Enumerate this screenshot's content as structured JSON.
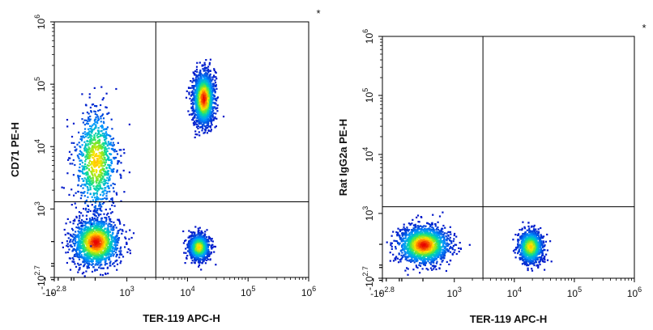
{
  "chart_data": [
    {
      "type": "scatter",
      "subtype": "flow-cytometry-density-plot",
      "xlabel": "TER-119 APC-H",
      "ylabel": "CD71 PE-H",
      "corner_mark": "*",
      "scale": "biexponential",
      "x_ticks": [
        {
          "base": "-10",
          "exp": "2.8",
          "value": -631
        },
        {
          "base": "10",
          "exp": "3",
          "value": 1000
        },
        {
          "base": "10",
          "exp": "4",
          "value": 10000
        },
        {
          "base": "10",
          "exp": "5",
          "value": 100000
        },
        {
          "base": "10",
          "exp": "6",
          "value": 1000000
        }
      ],
      "y_ticks": [
        {
          "base": "-10",
          "exp": "2.7",
          "value": -501
        },
        {
          "base": "10",
          "exp": "3",
          "value": 1000
        },
        {
          "base": "10",
          "exp": "4",
          "value": 10000
        },
        {
          "base": "10",
          "exp": "5",
          "value": 100000
        },
        {
          "base": "10",
          "exp": "6",
          "value": 1000000
        }
      ],
      "gate_x": 3000,
      "gate_y": 1300,
      "populations": [
        {
          "x": 300,
          "y": 300,
          "spread_x": 0.55,
          "spread_y": 0.55,
          "density": "high"
        },
        {
          "x": 300,
          "y": 6000,
          "spread_x": 0.5,
          "spread_y": 1.2,
          "density": "medium"
        },
        {
          "x": 18000,
          "y": 60000,
          "spread_x": 0.25,
          "spread_y": 0.6,
          "density": "high"
        },
        {
          "x": 15000,
          "y": 250,
          "spread_x": 0.25,
          "spread_y": 0.3,
          "density": "medium"
        }
      ]
    },
    {
      "type": "scatter",
      "subtype": "flow-cytometry-density-plot",
      "xlabel": "TER-119 APC-H",
      "ylabel": "Rat IgG2a PE-H",
      "corner_mark": "*",
      "scale": "biexponential",
      "x_ticks": [
        {
          "base": "-10",
          "exp": "2.8",
          "value": -631
        },
        {
          "base": "10",
          "exp": "3",
          "value": 1000
        },
        {
          "base": "10",
          "exp": "4",
          "value": 10000
        },
        {
          "base": "10",
          "exp": "5",
          "value": 100000
        },
        {
          "base": "10",
          "exp": "6",
          "value": 1000000
        }
      ],
      "y_ticks": [
        {
          "base": "-10",
          "exp": "2.7",
          "value": -501
        },
        {
          "base": "10",
          "exp": "3",
          "value": 1000
        },
        {
          "base": "10",
          "exp": "4",
          "value": 10000
        },
        {
          "base": "10",
          "exp": "5",
          "value": 100000
        },
        {
          "base": "10",
          "exp": "6",
          "value": 1000000
        }
      ],
      "gate_x": 3000,
      "gate_y": 1300,
      "populations": [
        {
          "x": 300,
          "y": 300,
          "spread_x": 0.6,
          "spread_y": 0.45,
          "density": "high"
        },
        {
          "x": 18000,
          "y": 280,
          "spread_x": 0.3,
          "spread_y": 0.4,
          "density": "medium"
        }
      ]
    }
  ]
}
